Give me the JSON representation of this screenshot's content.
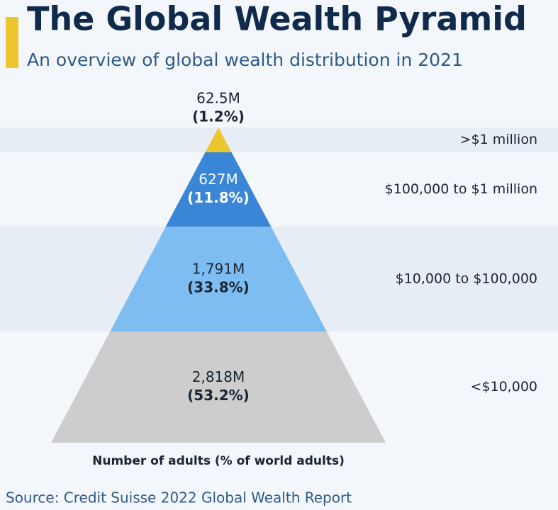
{
  "chart_data": {
    "type": "pyramid",
    "title": "The Global Wealth Pyramid",
    "subtitle": "An overview of global wealth distribution in 2021",
    "categories": [
      ">$1 million",
      "$100,000 to $1 million",
      "$10,000 to $100,000",
      "<$10,000"
    ],
    "values": [
      62.5,
      627,
      1791,
      2818
    ],
    "value_labels": [
      "62.5M",
      "627M",
      "1,791M",
      "2,818M"
    ],
    "shares": [
      1.2,
      11.8,
      33.8,
      53.2
    ],
    "share_labels": [
      "(1.2%)",
      "(11.8%)",
      "(33.8%)",
      "(53.2%)"
    ],
    "colors": [
      "#ecc52f",
      "#3a86d6",
      "#7ebdf1",
      "#cdcdcd"
    ],
    "label_colors": [
      "#1a2533",
      "#ffffff",
      "#1a2533",
      "#1a2533"
    ],
    "x_label": "Number of adults (% of world adults)",
    "source": "Source: Credit Suisse 2022 Global Wealth Report"
  }
}
